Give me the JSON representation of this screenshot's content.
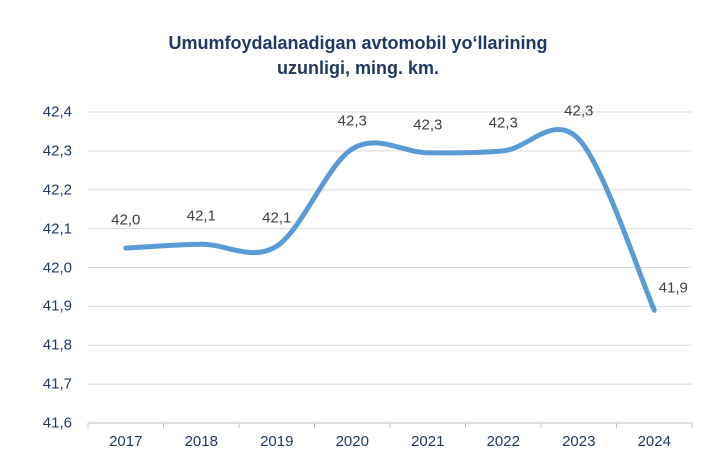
{
  "title": {
    "line1": "Umumfoydalanadigan avtomobil yo‘llarining",
    "line2": "uzunligi, ming. km."
  },
  "colors": {
    "title": "#203864",
    "axis_labels": "#203864",
    "data_labels": "#404040",
    "line": "#5B9BD5",
    "gridline": "#D9D9D9",
    "axis_line": "#BFBFBF"
  },
  "chart_data": {
    "type": "line",
    "smooth": true,
    "title": "Umumfoydalanadigan avtomobil yo‘llarining uzunligi, ming. km.",
    "categories": [
      "2017",
      "2018",
      "2019",
      "2020",
      "2021",
      "2022",
      "2023",
      "2024"
    ],
    "series": [
      {
        "name": "Umumfoydalanadigan avtomobil yo‘llarining uzunligi, ming. km.",
        "values": [
          42.05,
          42.06,
          42.055,
          42.305,
          42.295,
          42.3,
          42.33,
          41.89
        ],
        "point_labels": [
          "42,0",
          "42,1",
          "42,1",
          "42,3",
          "42,3",
          "42,3",
          "42,3",
          "41,9"
        ],
        "label_offsets": [
          null,
          null,
          null,
          null,
          null,
          null,
          null,
          {
            "dx": 19,
            "dy": 6
          }
        ]
      }
    ],
    "xlabel": "",
    "ylabel": "",
    "ylim": [
      41.6,
      42.4
    ],
    "y_tick_values": [
      41.6,
      41.7,
      41.8,
      41.9,
      42.0,
      42.1,
      42.2,
      42.3,
      42.4
    ],
    "y_ticks": [
      "41,6",
      "41,7",
      "41,8",
      "41,9",
      "42,0",
      "42,1",
      "42,2",
      "42,3",
      "42,4"
    ],
    "grid": true,
    "legend": false
  }
}
